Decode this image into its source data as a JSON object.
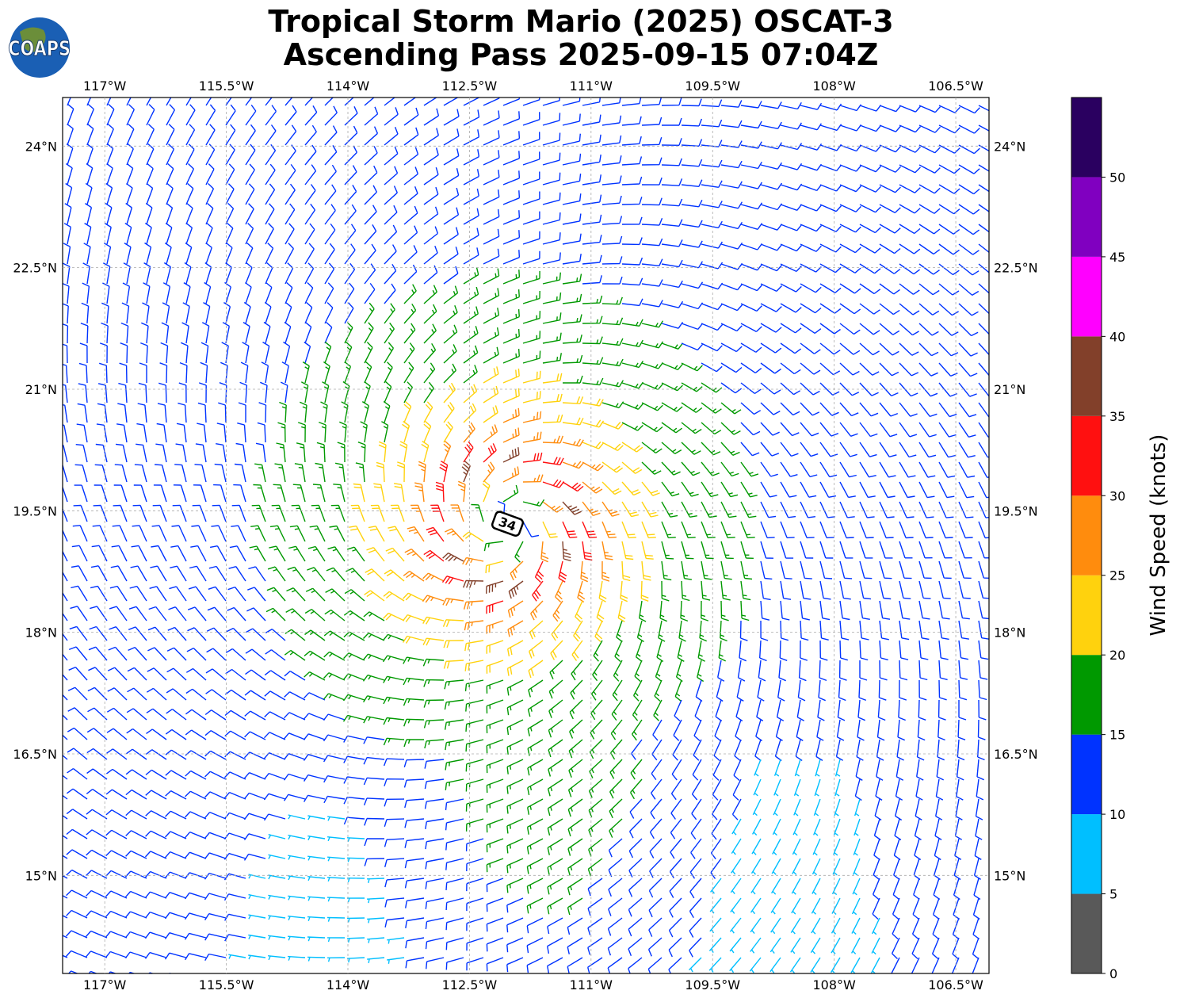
{
  "chart_data": {
    "type": "map",
    "title": "Tropical Storm Mario (2025) OSCAT-3",
    "subtitle": "Ascending Pass 2025-09-15 07:04Z",
    "logo": "COAPS",
    "xlim": [
      -117.52,
      -106.09
    ],
    "ylim": [
      13.79,
      24.6
    ],
    "xticks": [
      {
        "value": -117,
        "label": "117°W"
      },
      {
        "value": -115.5,
        "label": "115.5°W"
      },
      {
        "value": -114,
        "label": "114°W"
      },
      {
        "value": -112.5,
        "label": "112.5°W"
      },
      {
        "value": -111,
        "label": "111°W"
      },
      {
        "value": -109.5,
        "label": "109.5°W"
      },
      {
        "value": -108,
        "label": "108°W"
      },
      {
        "value": -106.5,
        "label": "106.5°W"
      }
    ],
    "yticks": [
      {
        "value": 24,
        "label": "24°N"
      },
      {
        "value": 22.5,
        "label": "22.5°N"
      },
      {
        "value": 21,
        "label": "21°N"
      },
      {
        "value": 19.5,
        "label": "19.5°N"
      },
      {
        "value": 18,
        "label": "18°N"
      },
      {
        "value": 16.5,
        "label": "16.5°N"
      },
      {
        "value": 15,
        "label": "15°N"
      }
    ],
    "grid": true,
    "storm": {
      "intensity": 34,
      "lon": -112.03,
      "lat": 19.34
    },
    "colorbar": {
      "label": "Wind Speed (knots)",
      "lim": [
        0,
        55
      ],
      "colors": [
        "#595959",
        "#00bfff",
        "#0033ff",
        "#009900",
        "#ffd20d",
        "#ff8c0d",
        "#ff1010",
        "#82402a",
        "#ff00ff",
        "#8000c0",
        "#2a0060"
      ],
      "ticks": [
        0,
        5,
        10,
        15,
        20,
        25,
        30,
        35,
        40,
        45,
        50
      ]
    }
  }
}
